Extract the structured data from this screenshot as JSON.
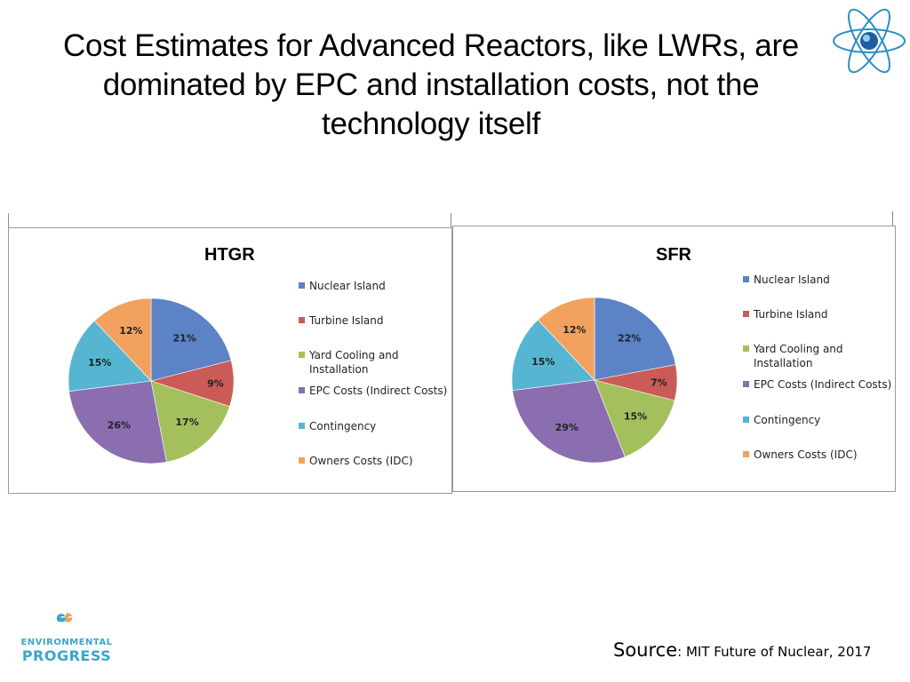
{
  "title_lines": [
    "Cost Estimates for Advanced Reactors, like LWRs, are",
    "dominated by EPC and installation costs, not the",
    "technology itself"
  ],
  "logo": {
    "line1": "ENVIRONMENTAL",
    "line2": "PROGRESS"
  },
  "source": {
    "label": "Source",
    "text": ": MIT Future of Nuclear, 2017"
  },
  "colors": [
    "#5b83c6",
    "#cb5b57",
    "#a3c05d",
    "#8a6eb0",
    "#56b5d1",
    "#f2a25e"
  ],
  "chart_data": [
    {
      "type": "pie",
      "title": "HTGR",
      "categories": [
        "Nuclear Island",
        "Turbine Island",
        "Yard Cooling and Installation",
        "EPC Costs (Indirect Costs)",
        "Contingency",
        "Owners Costs (IDC)"
      ],
      "values": [
        21,
        9,
        17,
        26,
        15,
        12
      ],
      "labels": [
        "21%",
        "9%",
        "17%",
        "26%",
        "15%",
        "12%"
      ],
      "legend": "right"
    },
    {
      "type": "pie",
      "title": "SFR",
      "categories": [
        "Nuclear Island",
        "Turbine Island",
        "Yard Cooling and Installation",
        "EPC Costs (Indirect Costs)",
        "Contingency",
        "Owners Costs (IDC)"
      ],
      "values": [
        22,
        7,
        15,
        29,
        15,
        12
      ],
      "labels": [
        "22%",
        "7%",
        "15%",
        "29%",
        "15%",
        "12%"
      ],
      "legend": "right"
    }
  ]
}
